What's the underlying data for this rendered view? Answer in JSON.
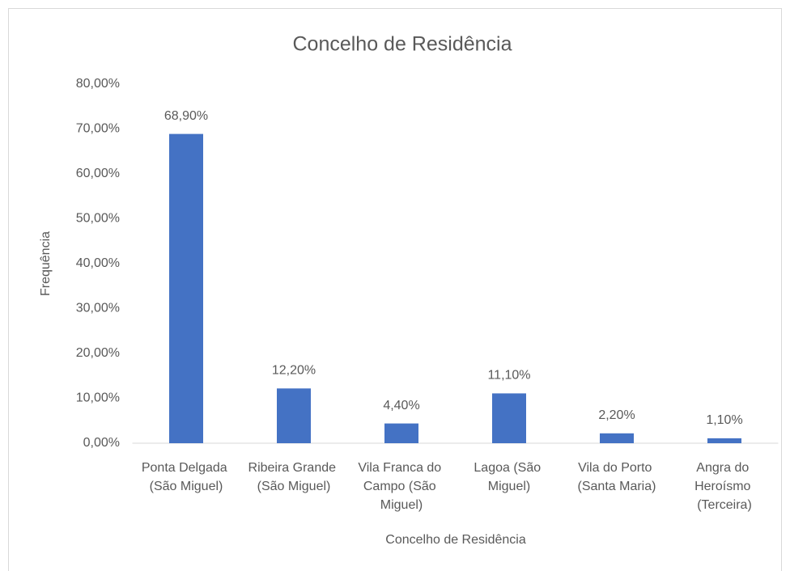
{
  "chart_data": {
    "type": "bar",
    "title": "Concelho de Residência",
    "x_label": "Concelho de Residência",
    "y_label": "Frequência",
    "categories": [
      "Ponta Delgada (São Miguel)",
      "Ribeira Grande (São Miguel)",
      "Vila Franca do Campo (São Miguel)",
      "Lagoa (São Miguel)",
      "Vila do Porto (Santa Maria)",
      "Angra do Heroísmo (Terceira)"
    ],
    "values": [
      68.9,
      12.2,
      4.4,
      11.1,
      2.2,
      1.1
    ],
    "value_labels": [
      "68,90%",
      "12,20%",
      "4,40%",
      "11,10%",
      "2,20%",
      "1,10%"
    ],
    "color": "#4472c4",
    "ylim": [
      0,
      80
    ],
    "yticks": [
      {
        "value": 0,
        "label": "0,00%"
      },
      {
        "value": 10,
        "label": "10,00%"
      },
      {
        "value": 20,
        "label": "20,00%"
      },
      {
        "value": 30,
        "label": "30,00%"
      },
      {
        "value": 40,
        "label": "40,00%"
      },
      {
        "value": 50,
        "label": "50,00%"
      },
      {
        "value": 60,
        "label": "60,00%"
      },
      {
        "value": 70,
        "label": "70,00%"
      },
      {
        "value": 80,
        "label": "80,00%"
      }
    ],
    "grid": false
  }
}
